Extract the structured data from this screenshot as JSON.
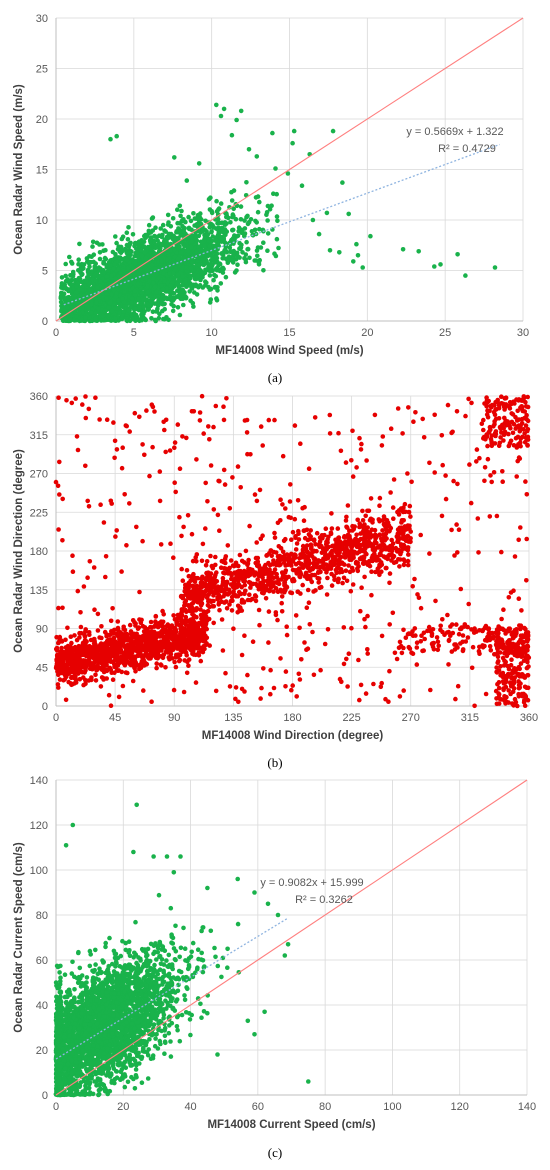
{
  "colors": {
    "green": "#19b24b",
    "red": "#e60000",
    "one_to_one_line": "#ff7f7f",
    "trendline": "#8fb4e0",
    "grid": "#d9d9d9",
    "axis": "#bfbfbf"
  },
  "chart_data": [
    {
      "type": "scatter",
      "panel_label": "(a)",
      "xlabel": "MF14008 Wind Speed (m/s)",
      "ylabel": "Ocean Radar Wind Speed (m/s)",
      "xlim": [
        0,
        30
      ],
      "ylim": [
        0,
        30
      ],
      "xticks": [
        "0",
        "5",
        "10",
        "15",
        "20",
        "25",
        "30"
      ],
      "yticks": [
        "0",
        "5",
        "10",
        "15",
        "20",
        "25",
        "30"
      ],
      "grid": true,
      "marker_color": "green",
      "one_to_one_line": true,
      "trendline": {
        "slope": 0.5669,
        "intercept": 1.322,
        "x_range": [
          0.5,
          28.5
        ]
      },
      "equation": "y = 0.5669x + 1.322",
      "r2": "R² = 0.4729",
      "cluster": {
        "n": 3400,
        "x_range": [
          0.3,
          14.5
        ],
        "x_mode": 5.5,
        "y_model": "0.62*x + 0.8",
        "y_sigma": 1.9,
        "y_min": 0
      },
      "points": [
        [
          3.5,
          18.0
        ],
        [
          3.9,
          18.3
        ],
        [
          7.6,
          16.2
        ],
        [
          10.3,
          21.4
        ],
        [
          10.6,
          20.3
        ],
        [
          10.8,
          21.0
        ],
        [
          11.6,
          19.9
        ],
        [
          11.9,
          20.8
        ],
        [
          11.3,
          18.4
        ],
        [
          12.4,
          17.0
        ],
        [
          13.9,
          18.6
        ],
        [
          15.3,
          18.8
        ],
        [
          15.2,
          17.6
        ],
        [
          17.8,
          18.8
        ],
        [
          16.3,
          16.5
        ],
        [
          18.4,
          13.7
        ],
        [
          18.8,
          10.6
        ],
        [
          16.5,
          10.0
        ],
        [
          17.4,
          10.7
        ],
        [
          16.9,
          8.6
        ],
        [
          18.2,
          6.8
        ],
        [
          19.4,
          6.5
        ],
        [
          19.1,
          5.9
        ],
        [
          19.7,
          5.3
        ],
        [
          20.2,
          8.4
        ],
        [
          22.3,
          7.1
        ],
        [
          23.3,
          6.9
        ],
        [
          24.7,
          5.6
        ],
        [
          24.3,
          5.4
        ],
        [
          25.8,
          6.6
        ],
        [
          26.3,
          4.5
        ],
        [
          28.2,
          5.3
        ],
        [
          19.3,
          7.6
        ],
        [
          17.6,
          7.0
        ],
        [
          14.9,
          14.6
        ],
        [
          15.8,
          13.4
        ],
        [
          12.9,
          16.3
        ],
        [
          14.1,
          15.1
        ],
        [
          9.2,
          15.6
        ],
        [
          8.4,
          13.9
        ]
      ]
    },
    {
      "type": "scatter",
      "panel_label": "(b)",
      "xlabel": "MF14008 Wind Direction (degree)",
      "ylabel": "Ocean Radar Wind Direction (degree)",
      "xlim": [
        0,
        360
      ],
      "ylim": [
        0,
        360
      ],
      "xticks": [
        "0",
        "45",
        "90",
        "135",
        "180",
        "225",
        "270",
        "315",
        "360"
      ],
      "yticks": [
        "0",
        "45",
        "90",
        "135",
        "180",
        "225",
        "270",
        "315",
        "360"
      ],
      "grid": true,
      "marker_color": "red",
      "one_to_one_line": false,
      "clusters": [
        {
          "n": 1300,
          "x_range": [
            0,
            115
          ],
          "y_model": "50 + 0.3*x",
          "y_sigma": 13
        },
        {
          "n": 1100,
          "x_range": [
            95,
            270
          ],
          "y_model": "125 + 0.42*(x-95)",
          "y_sigma": 17
        },
        {
          "n": 450,
          "x_range": [
            0,
            360
          ],
          "y_range": [
            0,
            360
          ]
        },
        {
          "n": 220,
          "x_range": [
            335,
            360
          ],
          "y_range": [
            0,
            90
          ]
        },
        {
          "n": 150,
          "x_range": [
            325,
            360
          ],
          "y_range": [
            300,
            360
          ]
        },
        {
          "n": 140,
          "x_range": [
            260,
            360
          ],
          "y_range": [
            60,
            95
          ]
        }
      ],
      "points": [
        [
          2,
          358
        ],
        [
          8,
          355
        ],
        [
          12,
          352
        ],
        [
          15,
          357
        ],
        [
          20,
          350
        ],
        [
          25,
          345
        ],
        [
          30,
          358
        ],
        [
          60,
          340
        ],
        [
          75,
          342
        ],
        [
          82,
          330
        ],
        [
          0,
          260
        ],
        [
          2,
          205
        ],
        [
          45,
          308
        ],
        [
          90,
          300
        ],
        [
          175,
          40
        ],
        [
          253,
          5
        ],
        [
          304,
          8
        ]
      ]
    },
    {
      "type": "scatter",
      "panel_label": "(c)",
      "xlabel": "MF14008 Current Speed (cm/s)",
      "ylabel": "Ocean Radar Current Speed (cm/s)",
      "xlim": [
        0,
        140
      ],
      "ylim": [
        0,
        140
      ],
      "xticks": [
        "0",
        "20",
        "40",
        "60",
        "80",
        "100",
        "120",
        "140"
      ],
      "yticks": [
        "0",
        "20",
        "40",
        "60",
        "80",
        "100",
        "120",
        "140"
      ],
      "grid": true,
      "marker_color": "green",
      "one_to_one_line": true,
      "trendline": {
        "slope": 0.9082,
        "intercept": 15.999,
        "x_range": [
          0,
          69
        ]
      },
      "equation": "y = 0.9082x + 15.999",
      "r2": "R² = 0.3262",
      "cluster": {
        "n": 3200,
        "x_range": [
          0,
          55
        ],
        "x_mode": 12,
        "y_model": "0.85*x + 18",
        "y_sigma": 13,
        "y_min": 0
      },
      "points": [
        [
          5,
          120
        ],
        [
          3,
          111
        ],
        [
          24,
          129
        ],
        [
          23,
          108
        ],
        [
          29,
          106
        ],
        [
          33,
          106
        ],
        [
          37,
          106
        ],
        [
          35,
          99
        ],
        [
          54,
          96
        ],
        [
          59,
          90
        ],
        [
          63,
          85
        ],
        [
          66,
          80
        ],
        [
          69,
          67
        ],
        [
          68,
          62
        ],
        [
          75,
          6
        ],
        [
          62,
          37
        ],
        [
          59,
          27
        ],
        [
          57,
          33
        ],
        [
          48,
          18
        ],
        [
          46,
          73
        ],
        [
          51,
          65
        ],
        [
          45,
          92
        ]
      ]
    }
  ]
}
